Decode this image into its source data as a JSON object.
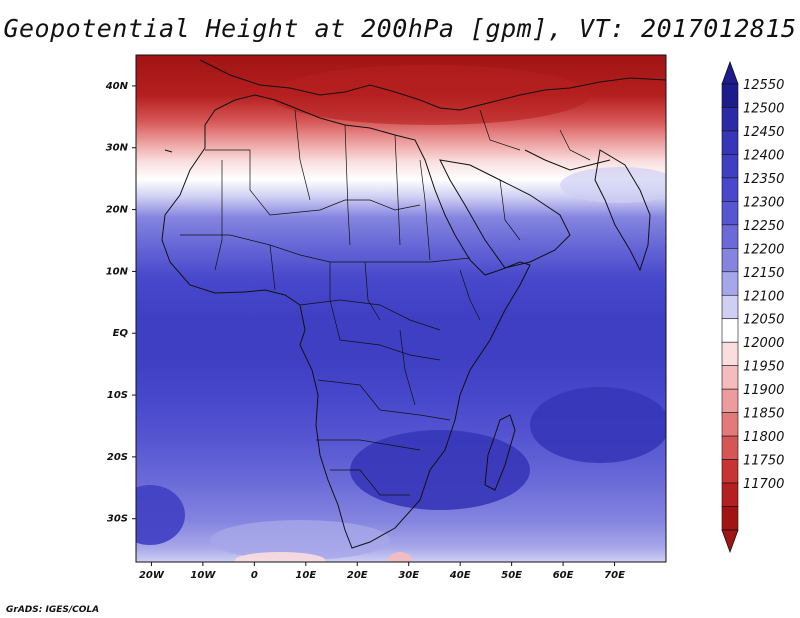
{
  "title": "Geopotential Height at 200hPa [gpm], VT: 2017012815",
  "footer": "GrADS: IGES/COLA",
  "map": {
    "projection": "lat-lon",
    "lon_range": [
      -23,
      80
    ],
    "lat_range": [
      -37,
      45
    ],
    "x_ticks": [
      "20W",
      "10W",
      "0",
      "10E",
      "20E",
      "30E",
      "40E",
      "50E",
      "60E",
      "70E"
    ],
    "y_ticks": [
      "40N",
      "30N",
      "20N",
      "10N",
      "EQ",
      "10S",
      "20S",
      "30S"
    ],
    "coastlines": true,
    "country_borders": true
  },
  "colorbar": {
    "levels": [
      "12550",
      "12500",
      "12450",
      "12400",
      "12350",
      "12300",
      "12250",
      "12200",
      "12150",
      "12100",
      "12050",
      "12000",
      "11950",
      "11900",
      "11850",
      "11800",
      "11750",
      "11700"
    ],
    "colors": [
      "#1c1c8c",
      "#2a2aa8",
      "#3636b8",
      "#3f3fc3",
      "#4848cc",
      "#5656d2",
      "#6a6ad8",
      "#8585e0",
      "#a6a6ea",
      "#cfcff4",
      "#ffffff",
      "#fadede",
      "#f4bcbc",
      "#ec9c9c",
      "#e27a7a",
      "#d65656",
      "#c83434",
      "#b51f1f",
      "#a11414"
    ],
    "arrow_top_color": "#1c1c8c",
    "arrow_bottom_color": "#a11414"
  }
}
